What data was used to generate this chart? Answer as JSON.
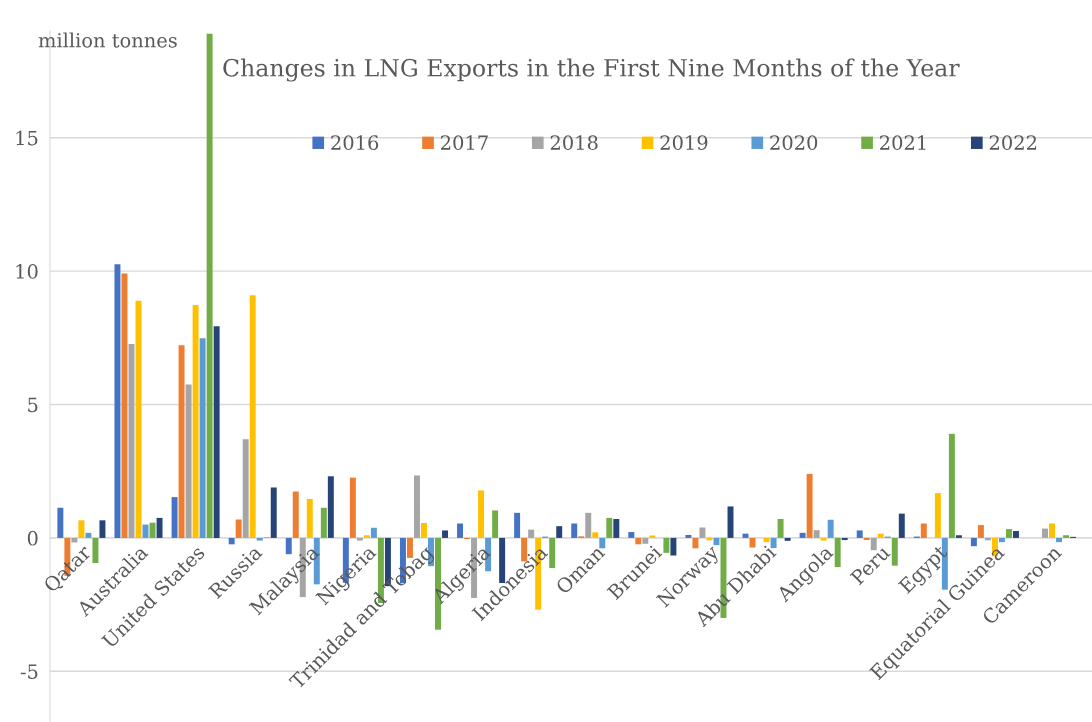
{
  "chart_data": {
    "type": "bar",
    "title": "Changes in LNG Exports in the First Nine Months of the Year",
    "ylabel": "million tonnes",
    "categories": [
      "Qatar",
      "Australia",
      "United States",
      "Russia",
      "Malaysia",
      "Nigeria",
      "Trinidad and Tobag",
      "Algeria",
      "Indonesia",
      "Oman",
      "Brunei",
      "Norway",
      "Abu Dhabi",
      "Angola",
      "Peru",
      "Egypt",
      "Equatorial Guinea",
      "Cameroon"
    ],
    "series": [
      {
        "name": "2016",
        "color": "#4472c4",
        "values": [
          1.13,
          10.26,
          1.53,
          -0.24,
          -0.61,
          -1.68,
          -1.7,
          0.54,
          0.94,
          0.54,
          0.22,
          0.11,
          0.16,
          0.19,
          0.28,
          0.05,
          -0.31,
          0
        ]
      },
      {
        "name": "2017",
        "color": "#ed7d31",
        "values": [
          -1.42,
          9.91,
          7.22,
          0.69,
          1.74,
          2.26,
          -0.75,
          -0.04,
          -0.88,
          0.06,
          -0.24,
          -0.39,
          -0.36,
          2.4,
          -0.08,
          0.54,
          0.48,
          0
        ]
      },
      {
        "name": "2018",
        "color": "#a5a5a5",
        "values": [
          -0.17,
          7.27,
          5.75,
          3.7,
          -2.22,
          -0.1,
          2.34,
          -2.25,
          0.31,
          0.94,
          -0.22,
          0.39,
          null,
          0.29,
          -0.46,
          null,
          -0.09,
          0.35
        ]
      },
      {
        "name": "2019",
        "color": "#ffc000",
        "values": [
          0.66,
          8.89,
          8.73,
          9.1,
          1.46,
          0.1,
          0.56,
          1.78,
          -2.69,
          0.21,
          0.09,
          -0.09,
          -0.16,
          -0.1,
          0.16,
          1.68,
          -0.69,
          0.54
        ]
      },
      {
        "name": "2020",
        "color": "#5b9bd5",
        "values": [
          0.19,
          0.5,
          7.48,
          -0.1,
          -1.74,
          0.38,
          -1.06,
          -1.25,
          0.05,
          -0.39,
          0,
          -0.27,
          -0.38,
          0.68,
          0.05,
          -1.94,
          -0.16,
          -0.16
        ]
      },
      {
        "name": "2021",
        "color": "#70ad47",
        "values": [
          -0.94,
          0.57,
          18.9,
          0.02,
          1.13,
          -2.44,
          -3.44,
          1.03,
          -1.13,
          0.75,
          -0.56,
          -3.0,
          0.71,
          -1.09,
          -1.04,
          3.9,
          0.33,
          0.1
        ]
      },
      {
        "name": "2022",
        "color": "#264478",
        "values": [
          0.66,
          0.75,
          7.93,
          1.89,
          2.31,
          -1.81,
          0.28,
          -1.69,
          0.44,
          0.71,
          -0.66,
          1.18,
          -0.11,
          -0.08,
          0.91,
          0.1,
          0.26,
          0.04
        ]
      }
    ],
    "ylim": [
      -6.9,
      19
    ],
    "yticks": [
      -5,
      0,
      5,
      10,
      15
    ],
    "grid": "y",
    "legend": "top"
  }
}
